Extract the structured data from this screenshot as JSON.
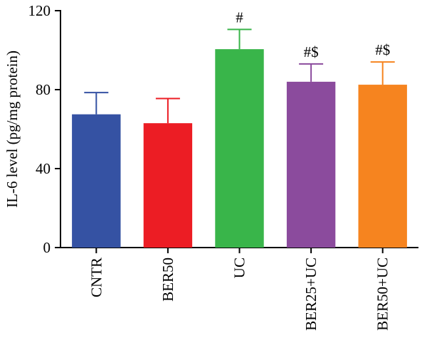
{
  "chart_data": {
    "type": "bar",
    "ylabel": "IL-6 level (pg/mg protein)",
    "xlabel": "",
    "ylim": [
      0,
      120
    ],
    "yticks": [
      0,
      40,
      80,
      120
    ],
    "categories": [
      "CNTR",
      "BER50",
      "UC",
      "BER25+UC",
      "BER50+UC"
    ],
    "values": [
      67.5,
      63,
      100.5,
      84,
      82.5
    ],
    "errors": [
      11,
      12.5,
      10,
      9,
      11.5
    ],
    "annotations": [
      "",
      "",
      "#",
      "#$",
      "#$"
    ],
    "colors": [
      "#3552a3",
      "#ec1d24",
      "#39b54a",
      "#8b4b9d",
      "#f6841f"
    ],
    "grid": false,
    "legend": "none"
  }
}
